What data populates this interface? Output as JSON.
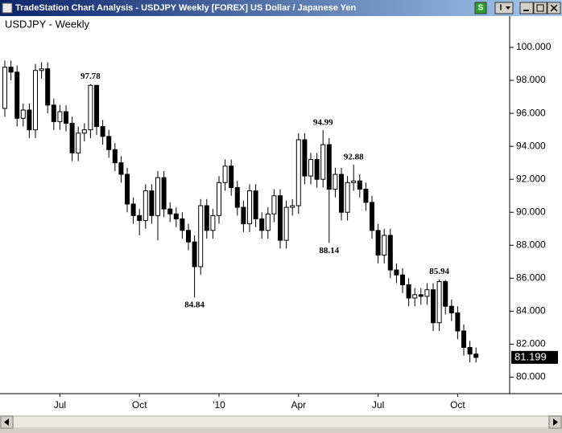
{
  "window": {
    "title": "TradeStation Chart Analysis - USDJPY Weekly [FOREX] US Dollar / Japanese Yen",
    "buttons": [
      "S",
      "I"
    ]
  },
  "chart_data": {
    "type": "candlestick",
    "title": "USDJPY - Weekly",
    "categories": [
      null,
      null,
      null,
      null,
      null,
      null,
      null,
      null,
      null,
      "Jul",
      null,
      null,
      null,
      null,
      null,
      null,
      null,
      null,
      null,
      null,
      null,
      null,
      "Oct",
      null,
      null,
      null,
      null,
      null,
      null,
      null,
      null,
      null,
      null,
      null,
      null,
      "'10",
      null,
      null,
      null,
      null,
      null,
      null,
      null,
      null,
      null,
      null,
      null,
      null,
      "Apr",
      null,
      null,
      null,
      null,
      null,
      null,
      null,
      null,
      null,
      null,
      null,
      null,
      "Jul",
      null,
      null,
      null,
      null,
      null,
      null,
      null,
      null,
      null,
      null,
      null,
      null,
      "Oct",
      null,
      null,
      null
    ],
    "open": [
      96.3,
      98.8,
      98.5,
      95.7,
      96.2,
      95.0,
      98.6,
      98.7,
      96.5,
      95.5,
      96.1,
      95.4,
      93.6,
      94.8,
      95.0,
      97.7,
      95.2,
      94.6,
      93.8,
      93.0,
      92.3,
      90.5,
      89.8,
      89.5,
      91.3,
      89.8,
      92.1,
      90.2,
      89.9,
      89.6,
      88.9,
      88.2,
      86.7,
      90.4,
      88.9,
      89.8,
      91.8,
      92.8,
      91.5,
      90.3,
      89.3,
      91.3,
      89.6,
      88.9,
      89.9,
      91.0,
      88.3,
      90.3,
      90.4,
      94.4,
      92.2,
      93.2,
      92.0,
      94.1,
      91.4,
      92.3,
      90.0,
      91.8,
      91.9,
      91.4,
      90.6,
      88.9,
      87.4,
      88.6,
      86.5,
      86.2,
      85.6,
      84.8,
      85.0,
      84.9,
      85.3,
      83.3,
      85.8,
      84.3,
      83.9,
      82.8,
      81.8,
      81.4
    ],
    "high": [
      99.2,
      99.2,
      98.9,
      96.6,
      96.6,
      99.0,
      99.1,
      99.1,
      96.9,
      96.5,
      96.5,
      95.8,
      95.2,
      95.4,
      97.78,
      97.7,
      95.6,
      95.0,
      94.2,
      93.4,
      92.7,
      90.9,
      90.2,
      91.7,
      91.7,
      92.5,
      92.5,
      90.6,
      90.3,
      90.0,
      89.3,
      88.6,
      90.8,
      90.8,
      90.2,
      92.2,
      93.2,
      93.2,
      91.9,
      90.7,
      91.7,
      91.7,
      90.0,
      90.3,
      91.4,
      91.4,
      90.7,
      90.8,
      94.8,
      94.8,
      93.6,
      93.6,
      94.99,
      94.5,
      92.7,
      92.7,
      92.2,
      92.88,
      92.3,
      91.8,
      91.0,
      89.3,
      89.0,
      89.0,
      86.9,
      86.6,
      86.0,
      85.4,
      85.4,
      85.7,
      85.7,
      85.94,
      85.9,
      84.7,
      84.3,
      83.2,
      82.2,
      81.8
    ],
    "low": [
      95.8,
      98.0,
      95.2,
      95.2,
      94.5,
      94.5,
      98.1,
      96.0,
      95.0,
      95.0,
      94.9,
      93.1,
      93.1,
      94.3,
      94.5,
      94.7,
      94.1,
      93.3,
      92.5,
      91.8,
      90.0,
      89.3,
      88.6,
      89.0,
      89.3,
      88.3,
      89.7,
      89.4,
      89.1,
      88.4,
      87.7,
      84.84,
      86.2,
      88.4,
      88.4,
      89.3,
      91.3,
      91.0,
      89.8,
      88.8,
      88.8,
      89.1,
      88.4,
      88.4,
      89.4,
      87.8,
      87.8,
      89.8,
      89.9,
      91.7,
      91.7,
      91.5,
      91.5,
      88.14,
      90.9,
      89.5,
      89.5,
      91.3,
      90.9,
      90.1,
      88.4,
      86.9,
      86.9,
      86.0,
      85.7,
      85.1,
      84.3,
      84.3,
      84.4,
      84.4,
      82.8,
      82.8,
      83.8,
      83.4,
      82.3,
      81.3,
      80.9,
      80.9
    ],
    "close": [
      98.8,
      98.5,
      95.7,
      96.2,
      95.0,
      98.6,
      98.7,
      96.5,
      95.5,
      96.1,
      95.4,
      93.6,
      94.8,
      95.0,
      97.7,
      95.2,
      94.6,
      93.8,
      93.0,
      92.3,
      90.5,
      89.8,
      89.5,
      91.3,
      89.8,
      92.1,
      90.2,
      89.9,
      89.6,
      88.9,
      88.2,
      86.7,
      90.4,
      88.9,
      89.8,
      91.8,
      92.8,
      91.5,
      90.3,
      89.3,
      91.3,
      89.6,
      88.9,
      89.9,
      91.0,
      88.3,
      90.3,
      90.4,
      94.4,
      92.2,
      93.2,
      92.0,
      94.1,
      91.4,
      92.3,
      90.0,
      91.8,
      91.9,
      91.4,
      90.6,
      88.9,
      87.4,
      88.6,
      86.5,
      86.2,
      85.6,
      84.8,
      85.0,
      84.9,
      85.3,
      83.3,
      85.8,
      84.3,
      83.9,
      82.8,
      81.8,
      81.4,
      81.199
    ],
    "high_labels": [
      null,
      null,
      null,
      null,
      null,
      null,
      null,
      null,
      null,
      null,
      null,
      null,
      null,
      null,
      "97.78",
      null,
      null,
      null,
      null,
      null,
      null,
      null,
      null,
      null,
      null,
      null,
      null,
      null,
      null,
      null,
      null,
      null,
      null,
      null,
      null,
      null,
      null,
      null,
      null,
      null,
      null,
      null,
      null,
      null,
      null,
      null,
      null,
      null,
      null,
      null,
      null,
      null,
      "94.99",
      null,
      null,
      null,
      null,
      "92.88",
      null,
      null,
      null,
      null,
      null,
      null,
      null,
      null,
      null,
      null,
      null,
      null,
      null,
      "85.94",
      null,
      null,
      null,
      null,
      null,
      null
    ],
    "low_labels": [
      null,
      null,
      null,
      null,
      null,
      null,
      null,
      null,
      null,
      null,
      null,
      null,
      null,
      null,
      null,
      null,
      null,
      null,
      null,
      null,
      null,
      null,
      null,
      null,
      null,
      null,
      null,
      null,
      null,
      null,
      null,
      "84.84",
      null,
      null,
      null,
      null,
      null,
      null,
      null,
      null,
      null,
      null,
      null,
      null,
      null,
      null,
      null,
      null,
      null,
      null,
      null,
      null,
      null,
      "88.14",
      null,
      null,
      null,
      null,
      null,
      null,
      null,
      null,
      null,
      null,
      null,
      null,
      null,
      null,
      null,
      null,
      null,
      null,
      null,
      null,
      null,
      null,
      null,
      null
    ],
    "ylim": [
      79,
      101.9
    ],
    "yticks": [
      {
        "value": 80,
        "label": "80.000"
      },
      {
        "value": 82,
        "label": "82.000"
      },
      {
        "value": 84,
        "label": "84.000"
      },
      {
        "value": 86,
        "label": "86.000"
      },
      {
        "value": 88,
        "label": "88.000"
      },
      {
        "value": 90,
        "label": "90.000"
      },
      {
        "value": 92,
        "label": "92.000"
      },
      {
        "value": 94,
        "label": "94.000"
      },
      {
        "value": 96,
        "label": "96.000"
      },
      {
        "value": 98,
        "label": "98.000"
      },
      {
        "value": 100,
        "label": "100.000"
      }
    ],
    "up_color": "#ffffff",
    "down_color": "#000000",
    "grid": false
  }
}
